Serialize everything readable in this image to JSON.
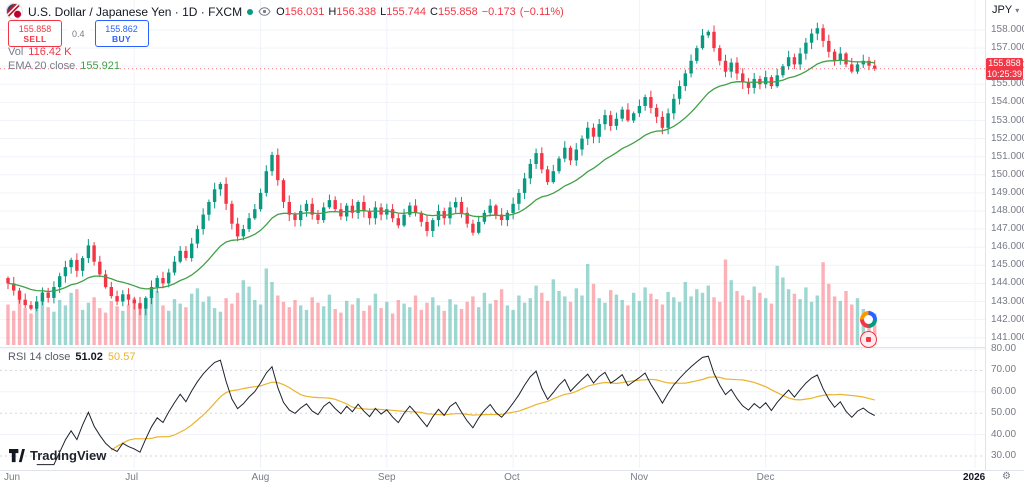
{
  "header": {
    "symbol_title": "U.S. Dollar / Japanese Yen · 1D · FXCM",
    "ohlc": {
      "o_label": "O",
      "o": "156.031",
      "h_label": "H",
      "h": "156.338",
      "l_label": "L",
      "l": "155.744",
      "c_label": "C",
      "c": "155.858",
      "change": "−0.173",
      "change_pct": "(−0.11%)"
    },
    "sell_price": "155.858",
    "sell_label": "SELL",
    "spread": "0.4",
    "buy_price": "155.862",
    "buy_label": "BUY",
    "vol_label": "Vol",
    "vol_value": "116.42 K",
    "ema_label": "EMA 20 close",
    "ema_value": "155.921"
  },
  "rsi_legend": {
    "label": "RSI 14 close",
    "value": "51.02",
    "ma_value": "50.57"
  },
  "axes": {
    "currency": "JPY",
    "caret": "▾",
    "price_labels": [
      "158.000",
      "157.000",
      "156.000",
      "155.000",
      "154.000",
      "153.000",
      "152.000",
      "151.000",
      "150.000",
      "149.000",
      "148.000",
      "147.000",
      "146.000",
      "145.000",
      "144.000",
      "143.000",
      "142.000",
      "141.000"
    ],
    "rsi_labels": [
      "80.00",
      "70.00",
      "60.00",
      "50.00",
      "40.00",
      "30.00"
    ],
    "time_labels": [
      {
        "label": "Jun",
        "index": 0
      },
      {
        "label": "Jul",
        "index": 22
      },
      {
        "label": "Aug",
        "index": 44
      },
      {
        "label": "Sep",
        "index": 66
      },
      {
        "label": "Oct",
        "index": 88
      },
      {
        "label": "Nov",
        "index": 110
      },
      {
        "label": "Dec",
        "index": 132
      }
    ],
    "year_label": "2026",
    "gear": "⚙"
  },
  "price_badge": {
    "price": "155.858",
    "countdown": "10:25:39"
  },
  "logo_text": "TradingView",
  "colors": {
    "up": "#089981",
    "down": "#f23645",
    "vol_up": "rgba(38,166,154,0.45)",
    "vol_down": "rgba(247,82,95,0.45)",
    "ema": "#43a047",
    "rsi": "#1e222d",
    "rsi_ma": "#eab42f",
    "grid": "#f0f3fa",
    "grid_dash": "#b2b5be",
    "axis_text": "#787b86",
    "badge_bg": "#f23645",
    "sell": "#f23645",
    "buy": "#2962ff",
    "dark": "#131722"
  },
  "chart_data": {
    "type": "candlestick",
    "symbol": "USD/JPY",
    "timeframe": "1D",
    "exchange": "FXCM",
    "price_axis_range": [
      141,
      158.5
    ],
    "rsi_axis_range": [
      30,
      80
    ],
    "overlays": [
      "EMA 20 close = 155.921"
    ],
    "indicators": [
      "RSI 14 close = 51.02",
      "RSI SMA 14 = 50.57"
    ],
    "last_candle": {
      "open": 156.031,
      "high": 156.338,
      "low": 155.744,
      "close": 155.858
    },
    "first_open": 144.3,
    "closes": [
      144.0,
      143.6,
      143.1,
      142.8,
      142.6,
      143.0,
      143.5,
      143.2,
      143.8,
      144.4,
      144.9,
      145.3,
      144.7,
      145.4,
      146.1,
      145.2,
      144.5,
      143.8,
      143.3,
      143.0,
      143.4,
      143.1,
      142.9,
      142.6,
      143.2,
      143.8,
      144.3,
      144.0,
      144.6,
      145.2,
      145.8,
      145.4,
      146.2,
      147.0,
      147.8,
      148.5,
      149.2,
      149.5,
      148.4,
      147.3,
      146.6,
      147.0,
      147.6,
      148.1,
      149.0,
      150.2,
      151.1,
      149.7,
      148.5,
      147.8,
      147.5,
      148.0,
      148.4,
      147.8,
      147.5,
      148.2,
      148.6,
      148.1,
      147.7,
      148.3,
      147.9,
      148.5,
      148.0,
      147.6,
      148.2,
      147.8,
      148.1,
      147.6,
      147.2,
      147.8,
      148.3,
      147.9,
      147.4,
      146.9,
      147.5,
      148.0,
      147.6,
      148.2,
      148.5,
      147.9,
      147.3,
      146.8,
      147.4,
      147.9,
      148.3,
      147.8,
      147.5,
      147.9,
      148.4,
      149.0,
      149.8,
      150.6,
      151.2,
      150.3,
      149.6,
      150.2,
      150.9,
      151.5,
      150.8,
      151.4,
      152.0,
      152.6,
      152.1,
      152.8,
      153.3,
      152.7,
      153.1,
      153.6,
      153.0,
      153.4,
      153.8,
      154.3,
      153.7,
      153.2,
      152.6,
      153.4,
      154.2,
      154.9,
      155.6,
      156.3,
      157.0,
      157.7,
      157.9,
      157.0,
      156.3,
      155.7,
      156.2,
      155.6,
      155.1,
      154.8,
      155.3,
      155.0,
      155.4,
      154.9,
      155.5,
      156.0,
      156.5,
      156.1,
      156.7,
      157.3,
      157.8,
      158.1,
      157.4,
      156.8,
      156.3,
      156.7,
      156.1,
      155.7,
      156.1,
      156.3,
      156.031,
      155.858
    ],
    "volumes": [
      45,
      38,
      52,
      41,
      35,
      48,
      55,
      42,
      37,
      50,
      44,
      58,
      62,
      39,
      47,
      53,
      41,
      36,
      49,
      43,
      38,
      45,
      52,
      47,
      40,
      55,
      60,
      44,
      38,
      51,
      46,
      42,
      57,
      63,
      48,
      54,
      41,
      37,
      52,
      46,
      58,
      72,
      65,
      50,
      45,
      85,
      70,
      55,
      48,
      42,
      50,
      44,
      39,
      53,
      47,
      43,
      56,
      40,
      36,
      49,
      45,
      52,
      38,
      44,
      57,
      41,
      48,
      35,
      50,
      46,
      42,
      55,
      39,
      47,
      53,
      44,
      38,
      51,
      45,
      40,
      48,
      54,
      42,
      58,
      46,
      50,
      62,
      44,
      39,
      55,
      47,
      52,
      66,
      58,
      49,
      73,
      60,
      54,
      48,
      63,
      55,
      90,
      68,
      52,
      47,
      61,
      56,
      50,
      44,
      58,
      49,
      64,
      57,
      51,
      45,
      59,
      53,
      48,
      70,
      54,
      62,
      58,
      66,
      53,
      48,
      95,
      72,
      60,
      55,
      50,
      65,
      58,
      52,
      46,
      88,
      75,
      62,
      57,
      51,
      64,
      48,
      55,
      92,
      68,
      54,
      49,
      60,
      45,
      52,
      40,
      38,
      35
    ]
  }
}
